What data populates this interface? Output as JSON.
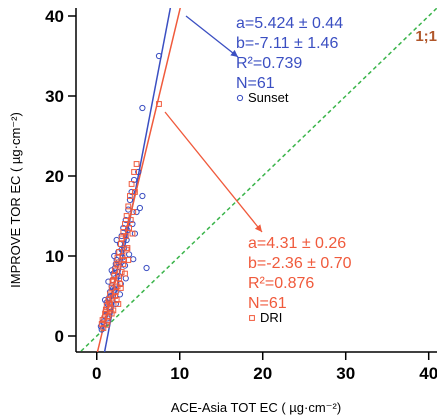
{
  "chart_data": {
    "type": "scatter",
    "xlabel": "ACE-Asia TOT EC  ( µg·cm⁻²)",
    "ylabel": "IMPROVE TOR EC  ( µg·cm⁻²)",
    "xlim": [
      -2.5,
      41
    ],
    "ylim": [
      -2,
      41
    ],
    "x_ticks": [
      0,
      10,
      20,
      30,
      40
    ],
    "y_ticks": [
      0,
      10,
      20,
      30,
      40
    ],
    "x_tick_labels": [
      "0",
      "10",
      "20",
      "30",
      "40"
    ],
    "y_tick_labels": [
      "0",
      "10",
      "20",
      "30",
      "40"
    ],
    "grid": false,
    "one_to_one_label": "1;1",
    "colors": {
      "sunset": "#3b4fc2",
      "dri": "#f05a3c",
      "one_to_one": "#3ab44a",
      "one_to_one_label": "#b0562a"
    },
    "series": [
      {
        "name": "Sunset",
        "marker": "circle",
        "color": "#3b4fc2",
        "slope": 5.424,
        "intercept": -7.11,
        "annotation_lines": [
          "a=5.424 ± 0.44",
          "b=-7.11 ±  1.46",
          "R²=0.739",
          "N=61"
        ],
        "points": [
          [
            0.5,
            1.2
          ],
          [
            0.8,
            1.8
          ],
          [
            1.0,
            2.5
          ],
          [
            1.1,
            3.2
          ],
          [
            1.3,
            4.0
          ],
          [
            1.5,
            4.8
          ],
          [
            1.6,
            5.5
          ],
          [
            1.8,
            6.2
          ],
          [
            1.9,
            7.0
          ],
          [
            2.0,
            7.8
          ],
          [
            2.2,
            8.5
          ],
          [
            2.3,
            9.0
          ],
          [
            2.4,
            9.5
          ],
          [
            2.6,
            10.5
          ],
          [
            2.8,
            11.5
          ],
          [
            3.0,
            12.5
          ],
          [
            3.2,
            13.5
          ],
          [
            3.5,
            14.5
          ],
          [
            3.8,
            15.8
          ],
          [
            4.0,
            17.0
          ],
          [
            4.2,
            18.0
          ],
          [
            4.5,
            19.5
          ],
          [
            5.0,
            20.5
          ],
          [
            5.5,
            17.5
          ],
          [
            6.0,
            8.5
          ],
          [
            5.5,
            28.5
          ],
          [
            7.5,
            35.0
          ],
          [
            1.2,
            4.2
          ],
          [
            1.4,
            6.8
          ],
          [
            1.7,
            5.0
          ],
          [
            2.1,
            10.0
          ],
          [
            2.5,
            8.0
          ],
          [
            2.7,
            7.5
          ],
          [
            3.1,
            9.8
          ],
          [
            3.3,
            11.0
          ],
          [
            3.6,
            12.0
          ],
          [
            4.3,
            14.0
          ],
          [
            4.8,
            15.5
          ],
          [
            0.6,
            0.8
          ],
          [
            0.9,
            1.5
          ],
          [
            1.5,
            3.5
          ],
          [
            1.9,
            4.5
          ],
          [
            2.2,
            5.8
          ],
          [
            2.9,
            6.5
          ],
          [
            3.4,
            8.8
          ],
          [
            3.9,
            10.2
          ],
          [
            4.6,
            12.8
          ],
          [
            5.2,
            16.0
          ],
          [
            1.0,
            4.5
          ],
          [
            1.8,
            8.2
          ],
          [
            2.4,
            12.0
          ],
          [
            2.0,
            6.0
          ],
          [
            2.6,
            9.2
          ],
          [
            3.0,
            10.8
          ],
          [
            3.7,
            13.2
          ],
          [
            4.4,
            9.6
          ],
          [
            1.3,
            2.2
          ],
          [
            1.6,
            3.0
          ],
          [
            2.3,
            4.0
          ],
          [
            2.8,
            5.2
          ],
          [
            3.5,
            7.2
          ]
        ]
      },
      {
        "name": "DRI",
        "marker": "square",
        "color": "#f05a3c",
        "slope": 4.31,
        "intercept": -2.36,
        "annotation_lines": [
          "a=4.31 ± 0.26",
          "b=-2.36 ± 0.70",
          "R²=0.876",
          "N=61"
        ],
        "points": [
          [
            0.6,
            1.5
          ],
          [
            0.9,
            2.2
          ],
          [
            1.1,
            3.0
          ],
          [
            1.2,
            3.8
          ],
          [
            1.4,
            4.5
          ],
          [
            1.6,
            5.2
          ],
          [
            1.8,
            6.0
          ],
          [
            1.9,
            6.8
          ],
          [
            2.1,
            7.5
          ],
          [
            2.2,
            8.2
          ],
          [
            2.4,
            9.0
          ],
          [
            2.5,
            9.8
          ],
          [
            2.7,
            10.5
          ],
          [
            2.9,
            11.5
          ],
          [
            3.0,
            12.2
          ],
          [
            3.2,
            13.0
          ],
          [
            3.4,
            14.0
          ],
          [
            3.6,
            15.0
          ],
          [
            3.8,
            16.2
          ],
          [
            4.0,
            17.5
          ],
          [
            4.2,
            19.0
          ],
          [
            4.5,
            20.5
          ],
          [
            4.8,
            21.5
          ],
          [
            7.5,
            29.0
          ],
          [
            1.0,
            2.8
          ],
          [
            1.5,
            4.2
          ],
          [
            2.0,
            7.0
          ],
          [
            2.6,
            8.8
          ],
          [
            3.1,
            10.0
          ],
          [
            3.5,
            12.5
          ],
          [
            1.3,
            1.8
          ],
          [
            1.7,
            3.5
          ],
          [
            2.3,
            5.5
          ],
          [
            2.8,
            6.5
          ],
          [
            3.3,
            9.5
          ],
          [
            3.9,
            13.5
          ],
          [
            4.4,
            15.5
          ],
          [
            0.8,
            1.0
          ],
          [
            1.4,
            2.5
          ],
          [
            1.9,
            4.8
          ],
          [
            2.5,
            6.2
          ],
          [
            3.0,
            8.0
          ],
          [
            3.7,
            11.0
          ],
          [
            4.1,
            14.5
          ],
          [
            4.6,
            18.0
          ],
          [
            1.1,
            3.3
          ],
          [
            1.6,
            4.0
          ],
          [
            2.2,
            5.0
          ],
          [
            2.7,
            7.2
          ],
          [
            3.2,
            9.0
          ],
          [
            3.6,
            10.8
          ],
          [
            4.3,
            12.8
          ],
          [
            1.8,
            2.8
          ],
          [
            2.4,
            4.5
          ],
          [
            2.9,
            6.0
          ],
          [
            3.4,
            7.8
          ],
          [
            0.7,
            2.0
          ],
          [
            1.2,
            1.4
          ],
          [
            2.0,
            3.2
          ],
          [
            2.6,
            4.0
          ],
          [
            3.8,
            9.5
          ]
        ]
      }
    ]
  }
}
